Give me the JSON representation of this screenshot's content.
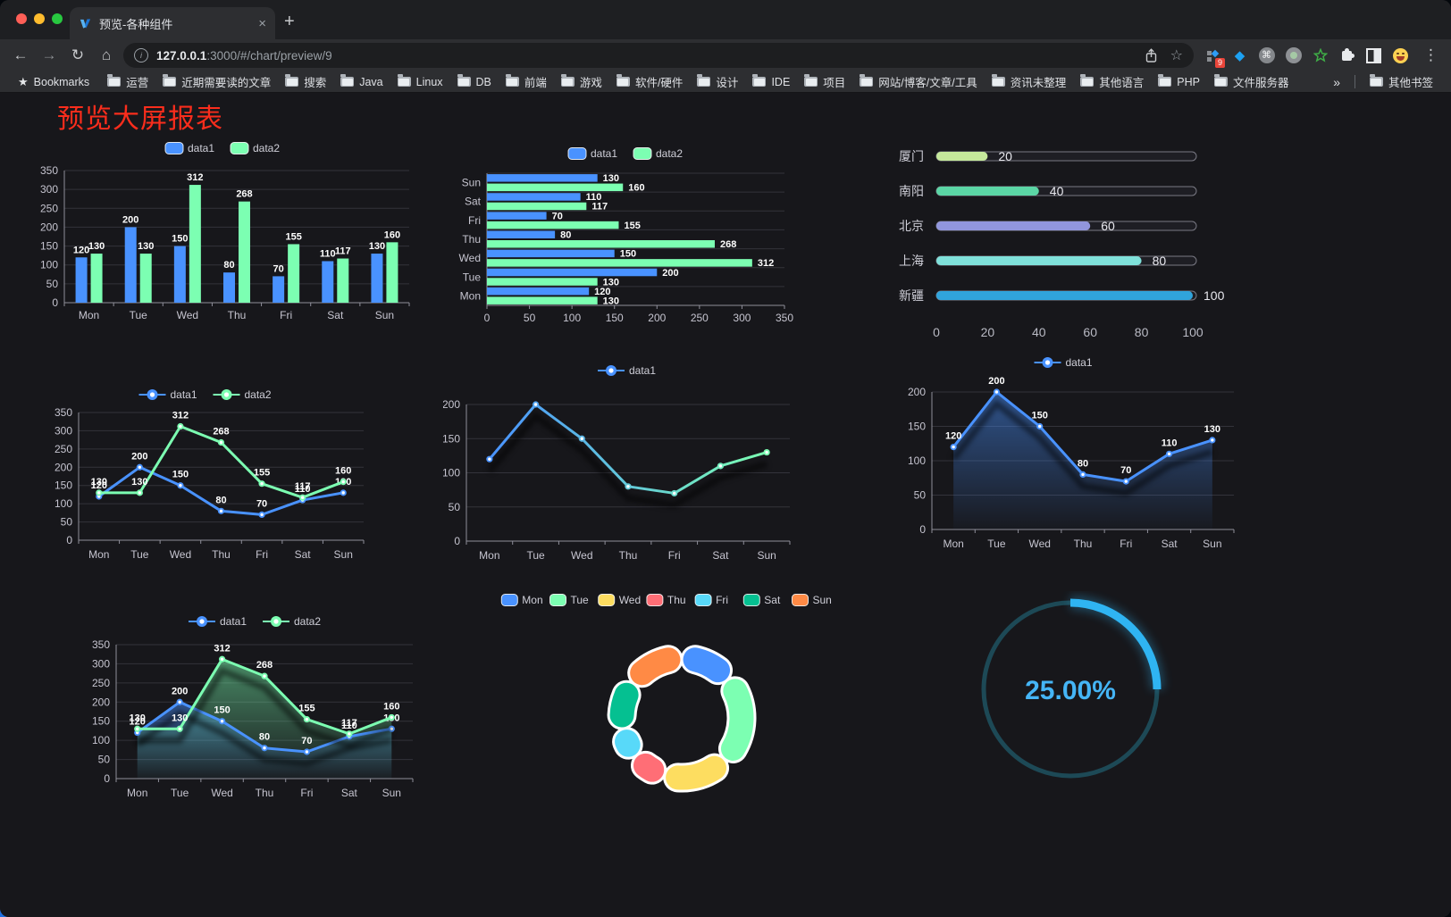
{
  "browser": {
    "tab": {
      "title": "预览-各种组件",
      "close": "×"
    },
    "new_tab": "+",
    "nav": {
      "back": "←",
      "forward": "→",
      "reload": "↻",
      "home": "⌂"
    },
    "url": {
      "host": "127.0.0.1",
      "rest": ":3000/#/chart/preview/9"
    },
    "actions": {
      "star": "☆"
    },
    "extensions": {
      "badge": "9",
      "icons": [
        "extensions-grid-icon",
        "gem-icon",
        "command-icon",
        "recorder-icon",
        "green-star-icon",
        "puzzle-icon",
        "contrast-icon",
        "emoji-icon"
      ]
    },
    "menu": "⋮",
    "bookmarks_bar": {
      "first": "Bookmarks",
      "folders": [
        "运营",
        "近期需要读的文章",
        "搜索",
        "Java",
        "Linux",
        "DB",
        "前端",
        "游戏",
        "软件/硬件",
        "设计",
        "IDE",
        "项目",
        "网站/博客/文章/工具",
        "资讯未整理",
        "其他语言",
        "PHP",
        "文件服务器"
      ],
      "overflow": "»",
      "other": "其他书签"
    }
  },
  "page": {
    "title": "预览大屏报表",
    "title_color": "#fa2d1c"
  },
  "chart_data": [
    {
      "id": "bar-vertical",
      "type": "bar",
      "categories": [
        "Mon",
        "Tue",
        "Wed",
        "Thu",
        "Fri",
        "Sat",
        "Sun"
      ],
      "series": [
        {
          "name": "data1",
          "color": "#4992ff",
          "values": [
            120,
            200,
            150,
            80,
            70,
            110,
            130
          ]
        },
        {
          "name": "data2",
          "color": "#7cffb2",
          "values": [
            130,
            130,
            312,
            268,
            155,
            117,
            160
          ]
        }
      ],
      "ylim": [
        0,
        350
      ],
      "ytick": 50,
      "value_labels": true,
      "legend_position": "top"
    },
    {
      "id": "bar-horizontal",
      "type": "bar-horizontal",
      "categories": [
        "Mon",
        "Tue",
        "Wed",
        "Thu",
        "Fri",
        "Sat",
        "Sun"
      ],
      "display_order_top_to_bottom": [
        "Sun",
        "Sat",
        "Fri",
        "Thu",
        "Wed",
        "Tue",
        "Mon"
      ],
      "series": [
        {
          "name": "data1",
          "color": "#4992ff",
          "values": [
            120,
            200,
            150,
            80,
            70,
            110,
            130
          ]
        },
        {
          "name": "data2",
          "color": "#7cffb2",
          "values": [
            130,
            130,
            312,
            268,
            155,
            117,
            160
          ]
        }
      ],
      "xlim": [
        0,
        350
      ],
      "xtick": 50,
      "value_labels": true,
      "legend_position": "top"
    },
    {
      "id": "progress-bars",
      "type": "bar-horizontal",
      "items": [
        {
          "label": "厦门",
          "value": 20,
          "color": "#c5e89b"
        },
        {
          "label": "南阳",
          "value": 40,
          "color": "#5bd6a5"
        },
        {
          "label": "北京",
          "value": 60,
          "color": "#9196dd"
        },
        {
          "label": "上海",
          "value": 80,
          "color": "#7fe1da"
        },
        {
          "label": "新疆",
          "value": 100,
          "color": "#30a4dc"
        }
      ],
      "xlim": [
        0,
        100
      ],
      "xticks": [
        0,
        20,
        40,
        60,
        80,
        100
      ]
    },
    {
      "id": "line-two-series",
      "type": "line",
      "categories": [
        "Mon",
        "Tue",
        "Wed",
        "Thu",
        "Fri",
        "Sat",
        "Sun"
      ],
      "series": [
        {
          "name": "data1",
          "color": "#4992ff",
          "values": [
            120,
            200,
            150,
            80,
            70,
            110,
            130
          ]
        },
        {
          "name": "data2",
          "color": "#7cffb2",
          "values": [
            130,
            130,
            312,
            268,
            155,
            117,
            160
          ]
        }
      ],
      "ylim": [
        0,
        350
      ],
      "ytick": 50,
      "value_labels": true,
      "legend_position": "top"
    },
    {
      "id": "line-gradient",
      "type": "line",
      "categories": [
        "Mon",
        "Tue",
        "Wed",
        "Thu",
        "Fri",
        "Sat",
        "Sun"
      ],
      "series": [
        {
          "name": "data1",
          "gradient": [
            "#4992ff",
            "#7cffb2"
          ],
          "values": [
            120,
            200,
            150,
            80,
            70,
            110,
            130
          ]
        }
      ],
      "ylim": [
        0,
        200
      ],
      "ytick": 50,
      "value_labels": false,
      "shadow": true,
      "legend_position": "top"
    },
    {
      "id": "area-single",
      "type": "area",
      "categories": [
        "Mon",
        "Tue",
        "Wed",
        "Thu",
        "Fri",
        "Sat",
        "Sun"
      ],
      "series": [
        {
          "name": "data1",
          "color": "#4992ff",
          "values": [
            120,
            200,
            150,
            80,
            70,
            110,
            130
          ]
        }
      ],
      "ylim": [
        0,
        200
      ],
      "ytick": 50,
      "value_labels": true,
      "shadow": true,
      "legend_position": "top"
    },
    {
      "id": "area-two-series",
      "type": "area",
      "categories": [
        "Mon",
        "Tue",
        "Wed",
        "Thu",
        "Fri",
        "Sat",
        "Sun"
      ],
      "series": [
        {
          "name": "data1",
          "color": "#4992ff",
          "values": [
            120,
            200,
            150,
            80,
            70,
            110,
            130
          ]
        },
        {
          "name": "data2",
          "color": "#7cffb2",
          "values": [
            130,
            130,
            312,
            268,
            155,
            117,
            160
          ]
        }
      ],
      "ylim": [
        0,
        350
      ],
      "ytick": 50,
      "value_labels": true,
      "shadow": true,
      "legend_position": "top"
    },
    {
      "id": "donut",
      "type": "pie",
      "items": [
        {
          "name": "Mon",
          "value": 120,
          "color": "#4992ff"
        },
        {
          "name": "Tue",
          "value": 200,
          "color": "#7cffb2"
        },
        {
          "name": "Wed",
          "value": 150,
          "color": "#fddd60"
        },
        {
          "name": "Thu",
          "value": 80,
          "color": "#ff6e76"
        },
        {
          "name": "Fri",
          "value": 70,
          "color": "#58d9f9"
        },
        {
          "name": "Sat",
          "value": 110,
          "color": "#05c091"
        },
        {
          "name": "Sun",
          "value": 130,
          "color": "#ff8a45"
        }
      ],
      "legend_position": "top"
    },
    {
      "id": "gauge",
      "type": "gauge",
      "value": 25,
      "max": 100,
      "label": "25.00%",
      "color": "#2fb4f2",
      "track_color": "#1d4956",
      "text_color": "#45b5f6"
    }
  ]
}
